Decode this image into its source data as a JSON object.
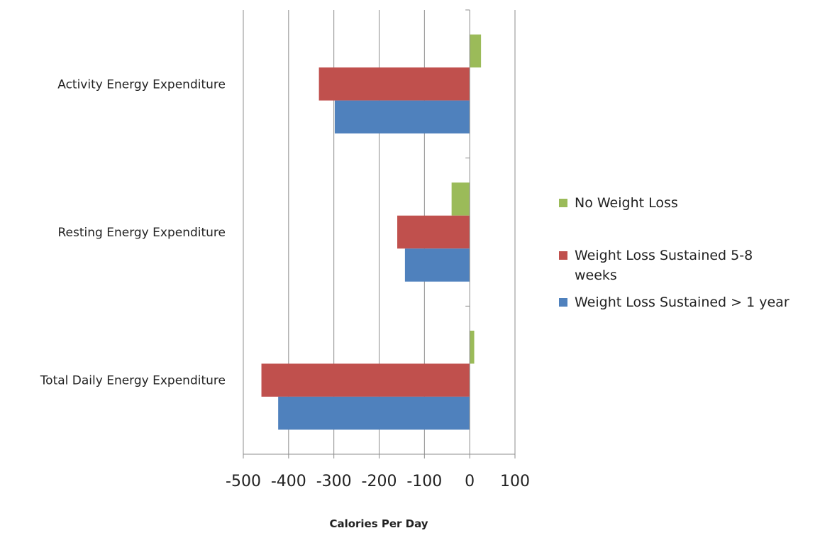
{
  "chart_data": {
    "type": "bar",
    "orientation": "horizontal",
    "categories": [
      "Activity Energy Expenditure",
      "Resting Energy Expenditure",
      "Total Daily Energy Expenditure"
    ],
    "series": [
      {
        "name": "No Weight Loss",
        "color": "#9bbb59",
        "values": [
          25,
          -40,
          10
        ]
      },
      {
        "name": "Weight Loss Sustained 5-8 weeks",
        "color": "#c0504d",
        "values": [
          -333,
          -160,
          -460
        ]
      },
      {
        "name": "Weight Loss Sustained > 1 year",
        "color": "#4f81bd",
        "values": [
          -298,
          -143,
          -423
        ]
      }
    ],
    "x_ticks": [
      "-500",
      "-400",
      "-300",
      "-200",
      "-100",
      "0",
      "100"
    ],
    "xlabel": "Calories Per Day",
    "xlim": [
      -500,
      100
    ],
    "grid": true,
    "legend_position": "right"
  }
}
